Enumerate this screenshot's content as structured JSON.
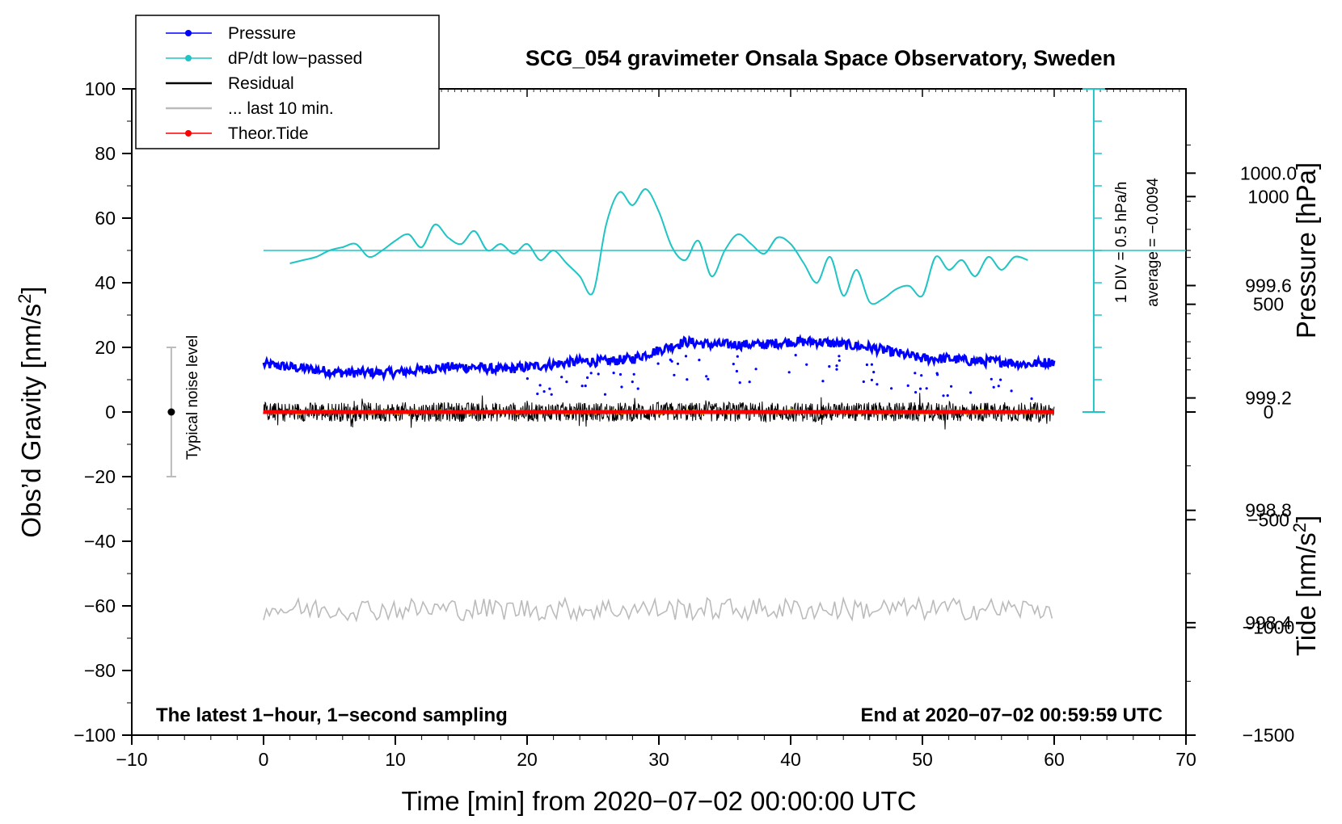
{
  "chart_data": {
    "type": "line",
    "title": "SCG_054 gravimeter Onsala Space Observatory, Sweden",
    "xlabel": "Time [min] from 2020−07−02 00:00:00 UTC",
    "ylabel_left": "Obs’d Gravity [nm/s",
    "ylabel_left_sup": "2",
    "ylabel_left_close": "]",
    "ylabel_right_pressure": "Pressure [hPa]",
    "ylabel_right_tide": "Tide [nm/s",
    "ylabel_right_tide_sup": "2",
    "ylabel_right_tide_close": "]",
    "xlim": [
      -10,
      70
    ],
    "ylim_left": [
      -100,
      100
    ],
    "xticks": [
      "−10",
      "0",
      "10",
      "20",
      "30",
      "40",
      "50",
      "60",
      "70"
    ],
    "xtick_values": [
      -10,
      0,
      10,
      20,
      30,
      40,
      50,
      60,
      70
    ],
    "yticks_left": [
      "100",
      "80",
      "60",
      "40",
      "20",
      "0",
      "−20",
      "−40",
      "−60",
      "−80",
      "−100"
    ],
    "ytick_left_values": [
      100,
      80,
      60,
      40,
      20,
      0,
      -20,
      -40,
      -60,
      -80,
      -100
    ],
    "pressure_axis": {
      "ticks": [
        "1000.0",
        "999.6",
        "999.2",
        "998.8",
        "998.4"
      ],
      "tick_values": [
        1000.0,
        999.6,
        999.2,
        998.8,
        998.4
      ],
      "range": [
        998.0,
        1000.3
      ]
    },
    "tide_axis": {
      "ticks": [
        "1000",
        "500",
        "0",
        "−500",
        "−1000",
        "−1500"
      ],
      "tick_values": [
        1000,
        500,
        0,
        -500,
        -1000,
        -1500
      ],
      "range": [
        -1500,
        1500
      ]
    },
    "legend": [
      {
        "label": "Pressure",
        "color": "#0000ff",
        "marker": true
      },
      {
        "label": "dP/dt low−passed",
        "color": "#20c4c4",
        "marker": true
      },
      {
        "label": "Residual",
        "color": "#000000",
        "marker": false
      },
      {
        "label": "... last 10 min.",
        "color": "#bbbbbb",
        "marker": false
      },
      {
        "label": "Theor.Tide",
        "color": "#ff0000",
        "marker": true
      }
    ],
    "annotations": {
      "noise_label": "Typical noise level",
      "noise_range": [
        -20,
        20
      ],
      "noise_center": 0,
      "noise_x": -7,
      "div_label": "1 DIV = 0.5 hPa/h",
      "avg_label": "average = −0.0094",
      "bottom_left": "The latest 1−hour, 1−second sampling",
      "bottom_right": "End at 2020−07−02 00:59:59 UTC"
    },
    "dpdt_scale": {
      "x": 63,
      "y_top": 100,
      "y_bottom": 0,
      "baseline": 50
    },
    "series": [
      {
        "name": "Pressure",
        "color": "#0000ff",
        "axis": "pressure",
        "x": [
          0,
          2,
          4,
          6,
          8,
          10,
          12,
          14,
          16,
          18,
          20,
          22,
          24,
          26,
          28,
          30,
          32,
          34,
          36,
          38,
          40,
          42,
          44,
          46,
          48,
          50,
          52,
          54,
          56,
          58,
          60
        ],
        "values": [
          999.32,
          999.31,
          999.3,
          999.29,
          999.29,
          999.29,
          999.3,
          999.31,
          999.31,
          999.3,
          999.31,
          999.32,
          999.33,
          999.33,
          999.34,
          999.37,
          999.4,
          999.39,
          999.39,
          999.39,
          999.4,
          999.4,
          999.39,
          999.38,
          999.36,
          999.34,
          999.34,
          999.33,
          999.33,
          999.32,
          999.33
        ]
      },
      {
        "name": "dP/dt low-passed",
        "color": "#20c4c4",
        "axis": "left",
        "x": [
          2,
          3,
          4,
          5,
          6,
          7,
          8,
          9,
          10,
          11,
          12,
          13,
          14,
          15,
          16,
          17,
          18,
          19,
          20,
          21,
          22,
          23,
          24,
          25,
          26,
          27,
          28,
          29,
          30,
          31,
          32,
          33,
          34,
          35,
          36,
          37,
          38,
          39,
          40,
          41,
          42,
          43,
          44,
          45,
          46,
          47,
          48,
          49,
          50,
          51,
          52,
          53,
          54,
          55,
          56,
          57,
          58
        ],
        "values": [
          46,
          47,
          48,
          50,
          51,
          52,
          48,
          50,
          53,
          55,
          51,
          58,
          54,
          52,
          56,
          50,
          52,
          49,
          52,
          47,
          50,
          46,
          42,
          37,
          58,
          68,
          64,
          69,
          62,
          51,
          47,
          53,
          42,
          50,
          55,
          52,
          49,
          54,
          52,
          46,
          40,
          48,
          36,
          44,
          34,
          35,
          38,
          39,
          36,
          48,
          44,
          47,
          42,
          48,
          44,
          48,
          47
        ]
      },
      {
        "name": "Residual",
        "color": "#000000",
        "axis": "left",
        "x_range": [
          0,
          60
        ],
        "values": [
          0
        ]
      },
      {
        "name": "... last 10 min.",
        "color": "#bbbbbb",
        "axis": "left",
        "x_range": [
          0,
          60
        ],
        "values": [
          -61
        ]
      },
      {
        "name": "Theor.Tide",
        "color": "#ff0000",
        "axis": "tide",
        "x": [
          0,
          60
        ],
        "values": [
          0,
          0
        ]
      }
    ]
  }
}
